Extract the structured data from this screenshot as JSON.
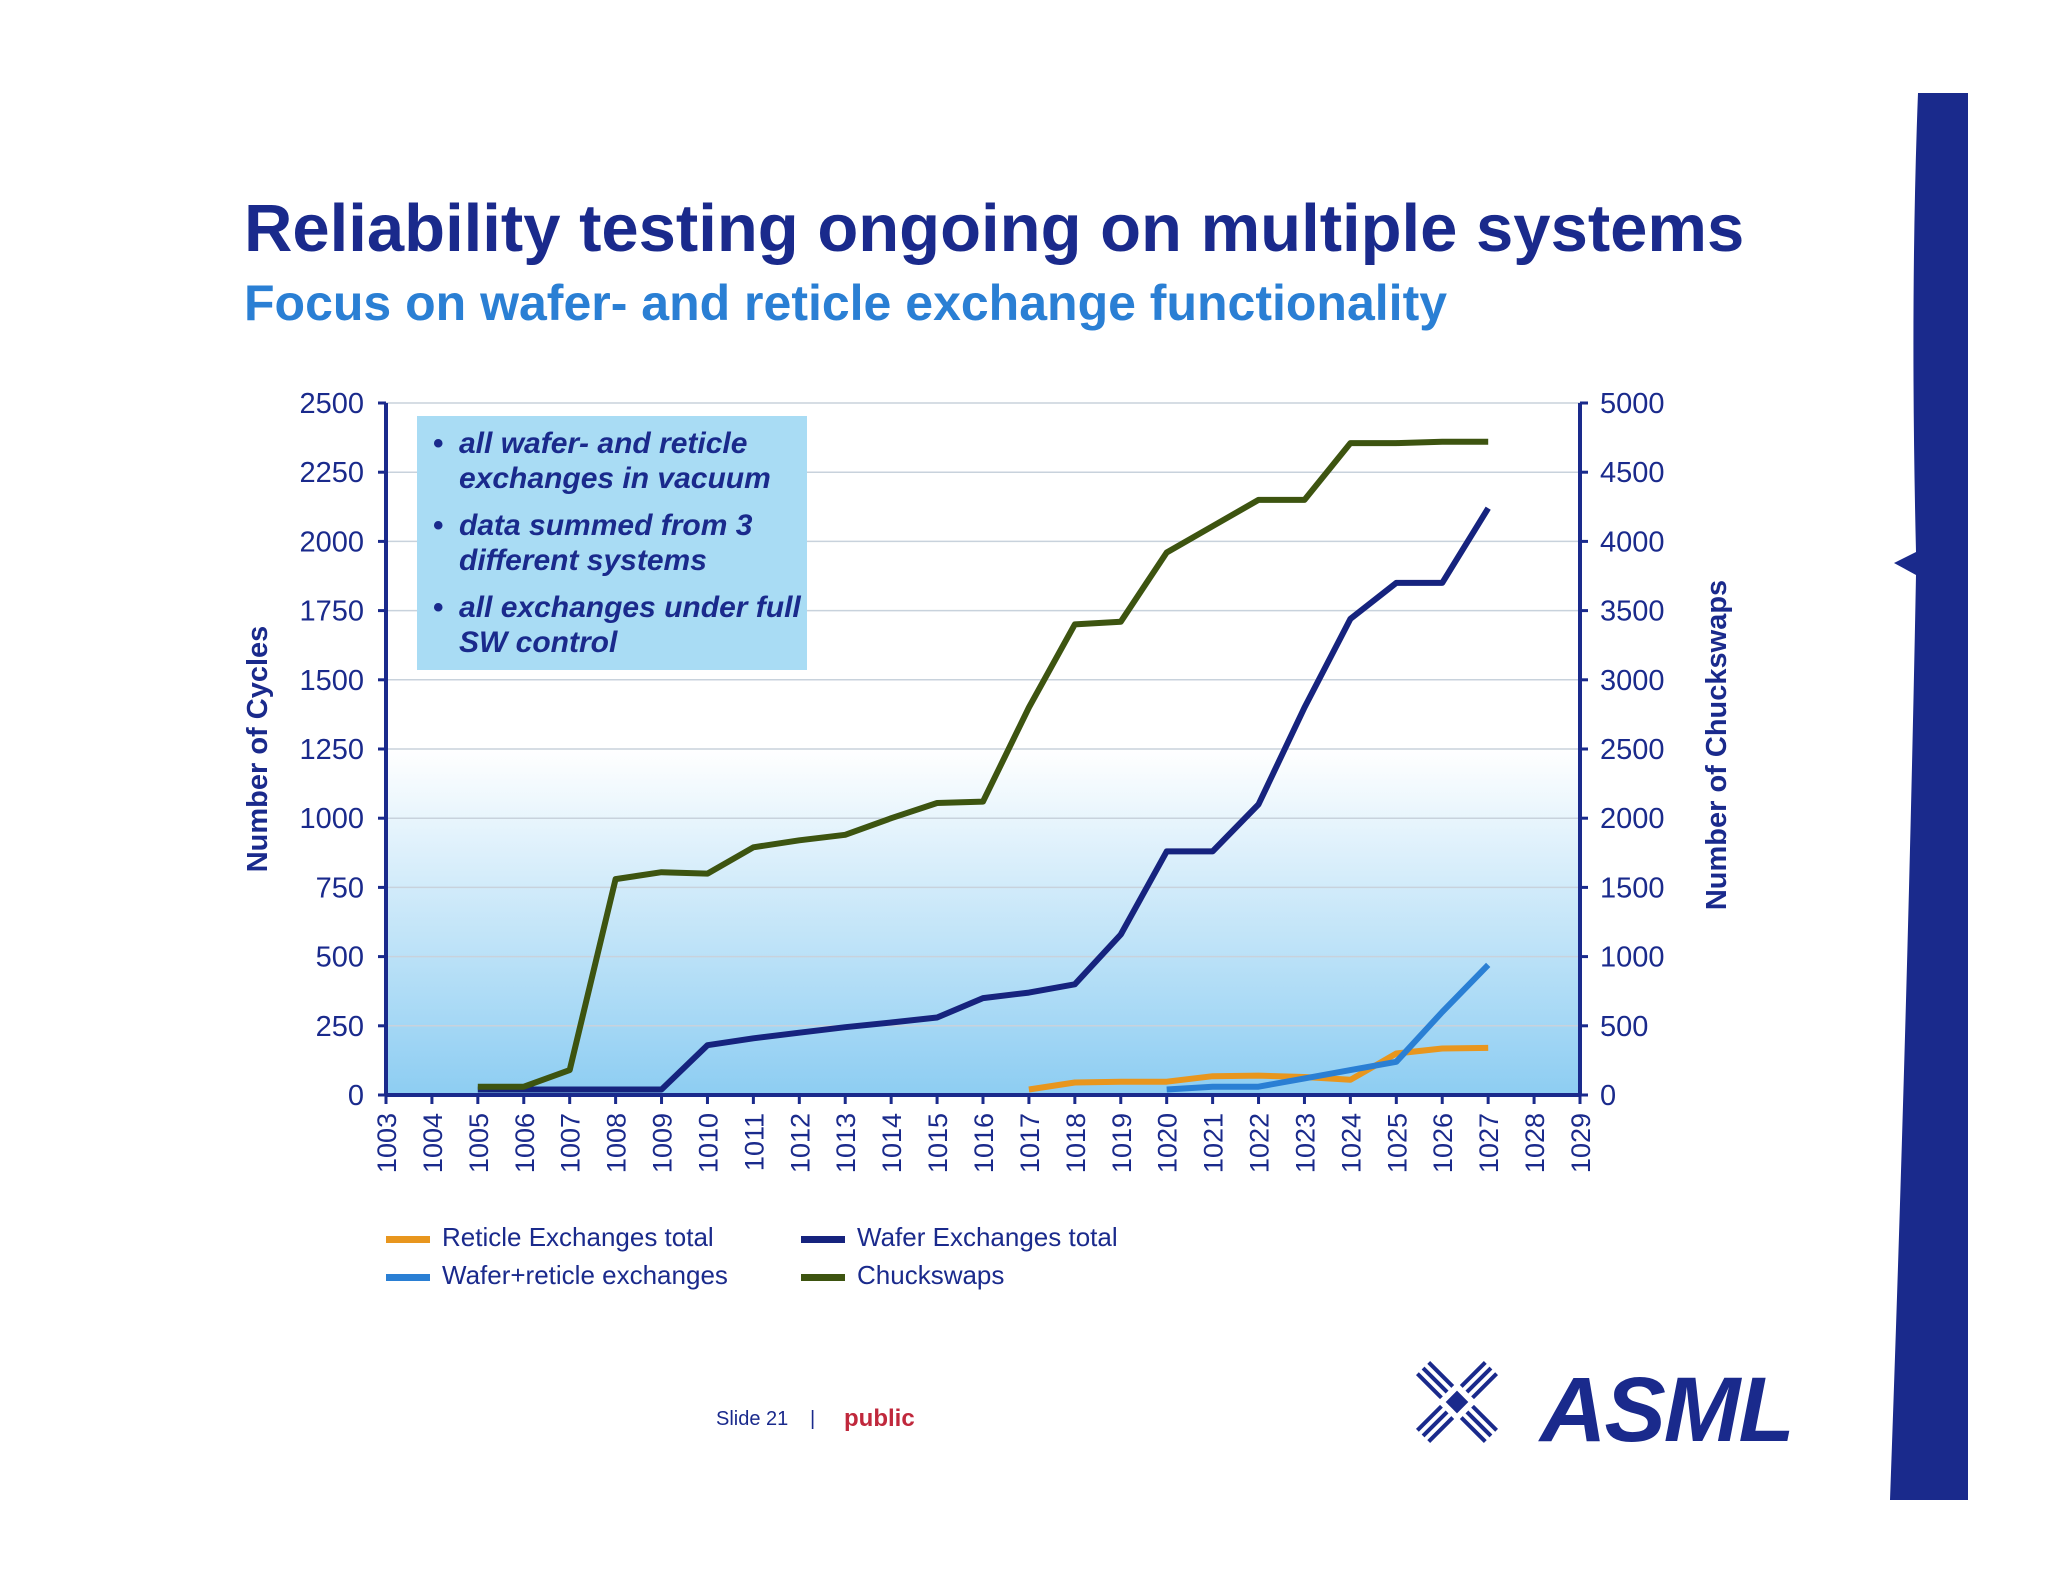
{
  "slide": {
    "title": "Reliability testing ongoing on multiple systems",
    "subtitle": "Focus on wafer- and reticle exchange functionality",
    "slide_label": "Slide 21",
    "separator": "|",
    "classification": "public",
    "logo_text": "ASML"
  },
  "callout": {
    "items": [
      "all wafer- and reticle exchanges in vacuum",
      "data summed from 3 different systems",
      "all exchanges under full SW control"
    ]
  },
  "colors": {
    "reticle": "#e8961e",
    "wafer_total": "#16237e",
    "wafer_reticle": "#2a7fd4",
    "chuckswaps": "#3d5410",
    "title": "#1a2a8c",
    "subtitle": "#2a7fd4",
    "classification": "#c0283c"
  },
  "chart_data": {
    "type": "line",
    "categories": [
      "1003",
      "1004",
      "1005",
      "1006",
      "1007",
      "1008",
      "1009",
      "1010",
      "1011",
      "1012",
      "1013",
      "1014",
      "1015",
      "1016",
      "1017",
      "1018",
      "1019",
      "1020",
      "1021",
      "1022",
      "1023",
      "1024",
      "1025",
      "1026",
      "1027",
      "1028",
      "1029"
    ],
    "ylabel": "Number of Cycles",
    "y2label": "Number of Chuckswaps",
    "ylim": [
      0,
      2500
    ],
    "y2lim": [
      0,
      5000
    ],
    "yticks": [
      0,
      250,
      500,
      750,
      1000,
      1250,
      1500,
      1750,
      2000,
      2250,
      2500
    ],
    "y2ticks": [
      0,
      500,
      1000,
      1500,
      2000,
      2500,
      3000,
      3500,
      4000,
      4500,
      5000
    ],
    "grid": true,
    "legend_position": "bottom-left",
    "series": [
      {
        "name": "Reticle Exchanges total",
        "axis": "left",
        "color": "#e8961e",
        "values": [
          null,
          null,
          null,
          null,
          null,
          null,
          null,
          null,
          null,
          null,
          null,
          null,
          null,
          null,
          20,
          45,
          48,
          48,
          68,
          70,
          65,
          55,
          150,
          168,
          170,
          null,
          null
        ]
      },
      {
        "name": "Wafer Exchanges total",
        "axis": "left",
        "color": "#16237e",
        "values": [
          null,
          null,
          20,
          20,
          20,
          20,
          20,
          180,
          205,
          225,
          245,
          262,
          280,
          350,
          370,
          400,
          580,
          880,
          880,
          1050,
          1400,
          1720,
          1850,
          1850,
          2120,
          null,
          null
        ]
      },
      {
        "name": "Wafer+reticle exchanges",
        "axis": "left",
        "color": "#2a7fd4",
        "values": [
          null,
          null,
          null,
          null,
          null,
          null,
          null,
          null,
          null,
          null,
          null,
          null,
          null,
          null,
          null,
          null,
          null,
          20,
          30,
          30,
          60,
          90,
          120,
          300,
          470,
          null,
          null
        ]
      },
      {
        "name": "Chuckswaps",
        "axis": "right",
        "color": "#3d5410",
        "values": [
          null,
          null,
          60,
          60,
          180,
          1560,
          1610,
          1600,
          1790,
          1840,
          1880,
          2000,
          2110,
          2120,
          2800,
          3400,
          3420,
          3920,
          4110,
          4300,
          4300,
          4710,
          4710,
          4720,
          4720,
          null,
          null
        ]
      }
    ]
  }
}
